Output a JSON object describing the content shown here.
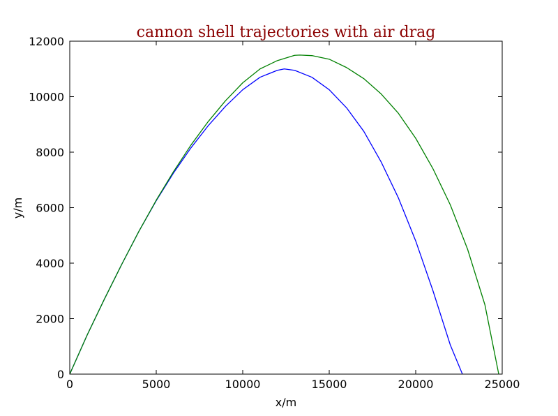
{
  "chart_data": {
    "type": "line",
    "title": "cannon shell trajectories with air drag",
    "title_color": "#8b0000",
    "xlabel": "x/m",
    "ylabel": "y/m",
    "xlim": [
      0,
      25000
    ],
    "ylim": [
      0,
      12000
    ],
    "xticks": [
      0,
      5000,
      10000,
      15000,
      20000,
      25000
    ],
    "yticks": [
      0,
      2000,
      4000,
      6000,
      8000,
      10000,
      12000
    ],
    "xtick_labels": [
      "0",
      "5000",
      "10000",
      "15000",
      "20000",
      "25000"
    ],
    "ytick_labels": [
      "0",
      "2000",
      "4000",
      "6000",
      "8000",
      "10000",
      "12000"
    ],
    "grid": false,
    "series": [
      {
        "color": "#0000ff",
        "x": [
          0,
          1000,
          2000,
          3000,
          4000,
          5000,
          6000,
          7000,
          8000,
          9000,
          10000,
          11000,
          12000,
          12400,
          13000,
          14000,
          15000,
          16000,
          17000,
          18000,
          19000,
          20000,
          21000,
          22000,
          22700
        ],
        "y": [
          0,
          1400,
          2700,
          3950,
          5150,
          6250,
          7250,
          8150,
          8950,
          9650,
          10250,
          10700,
          10950,
          11000,
          10950,
          10700,
          10250,
          9600,
          8750,
          7650,
          6350,
          4800,
          3000,
          1050,
          0
        ]
      },
      {
        "color": "#008000",
        "x": [
          0,
          1000,
          2000,
          3000,
          4000,
          5000,
          6000,
          7000,
          8000,
          9000,
          10000,
          11000,
          12000,
          13000,
          13300,
          14000,
          15000,
          16000,
          17000,
          18000,
          19000,
          20000,
          21000,
          22000,
          23000,
          24000,
          24800
        ],
        "y": [
          0,
          1400,
          2700,
          3950,
          5150,
          6270,
          7300,
          8250,
          9100,
          9850,
          10500,
          11000,
          11300,
          11490,
          11500,
          11480,
          11350,
          11050,
          10650,
          10100,
          9400,
          8500,
          7400,
          6100,
          4500,
          2500,
          0
        ]
      }
    ]
  }
}
